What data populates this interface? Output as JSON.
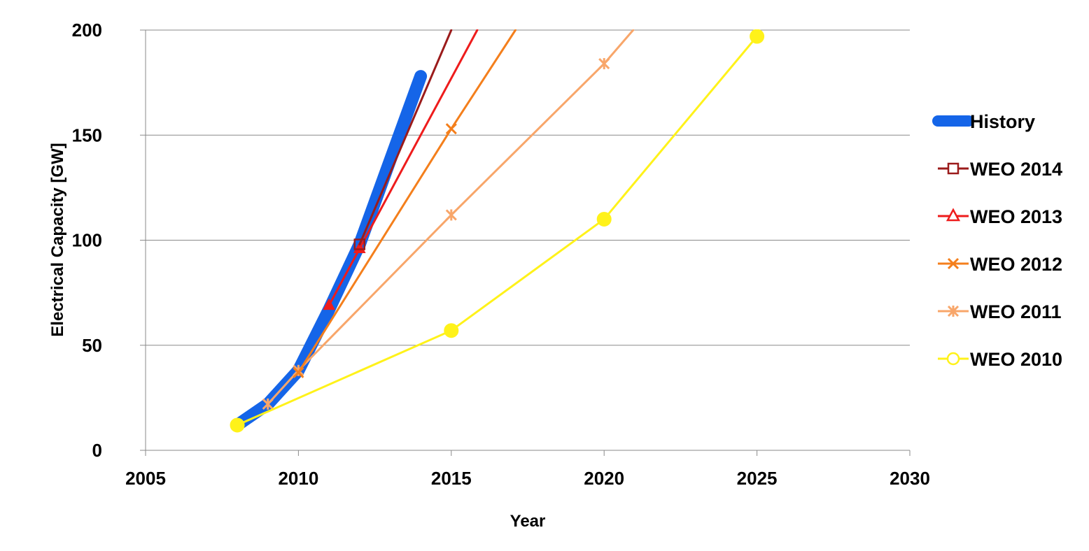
{
  "chart_data": {
    "type": "line",
    "title": "",
    "xlabel": "Year",
    "ylabel": "Electrical Capacity [GW]",
    "xlim": [
      2005,
      2030
    ],
    "ylim": [
      0,
      200
    ],
    "xticks": [
      "2005",
      "2010",
      "2015",
      "2020",
      "2025",
      "2030"
    ],
    "yticks": [
      "0",
      "50",
      "100",
      "150",
      "200"
    ],
    "grid": "horizontal",
    "legend_position": "right",
    "series": [
      {
        "name": "History",
        "color": "#1565E8",
        "marker": "none",
        "points": [
          [
            2008,
            12
          ],
          [
            2009,
            22
          ],
          [
            2010,
            38
          ],
          [
            2011,
            67
          ],
          [
            2012,
            98
          ],
          [
            2013,
            138
          ],
          [
            2014,
            178
          ]
        ]
      },
      {
        "name": "WEO 2014",
        "color": "#9B1B1B",
        "marker": "square",
        "points": [
          [
            2012,
            98
          ],
          [
            2015,
            200
          ]
        ]
      },
      {
        "name": "WEO 2013",
        "color": "#EE1C1C",
        "marker": "triangle",
        "points": [
          [
            2011,
            69
          ],
          [
            2012,
            96
          ],
          [
            2015.85,
            200
          ]
        ]
      },
      {
        "name": "WEO 2012",
        "color": "#F47F1C",
        "marker": "x",
        "points": [
          [
            2010,
            37
          ],
          [
            2015,
            153
          ],
          [
            2017.1,
            200
          ]
        ]
      },
      {
        "name": "WEO 2011",
        "color": "#F8A66A",
        "marker": "star",
        "points": [
          [
            2009,
            22
          ],
          [
            2010,
            38
          ],
          [
            2015,
            112
          ],
          [
            2020,
            184
          ],
          [
            2020.95,
            200
          ]
        ]
      },
      {
        "name": "WEO 2010",
        "color": "#FFF21A",
        "marker": "circle",
        "points": [
          [
            2008,
            12
          ],
          [
            2015,
            57
          ],
          [
            2020,
            110
          ],
          [
            2025,
            197
          ]
        ]
      }
    ]
  }
}
